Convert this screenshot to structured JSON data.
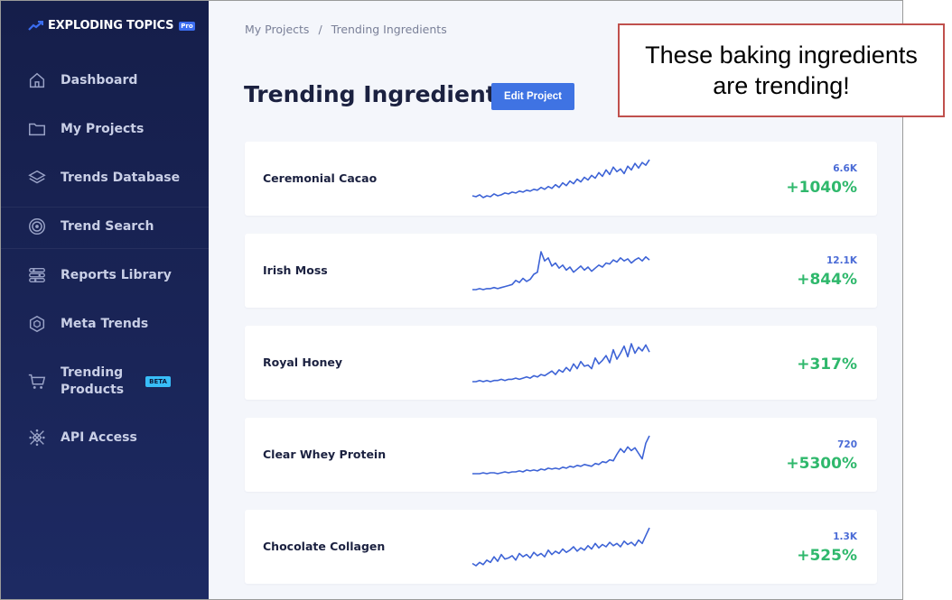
{
  "app": {
    "logo_text": "EXPLODING TOPICS",
    "pro_badge": "Pro"
  },
  "sidebar": {
    "items": [
      {
        "label": "Dashboard",
        "icon": "home-icon"
      },
      {
        "label": "My Projects",
        "icon": "folder-icon"
      },
      {
        "label": "Trends Database",
        "icon": "layers-icon"
      },
      {
        "label": "Trend Search",
        "icon": "target-icon"
      },
      {
        "label": "Reports Library",
        "icon": "sliders-icon"
      },
      {
        "label": "Meta Trends",
        "icon": "hexagon-icon"
      },
      {
        "label_line1": "Trending",
        "label_line2": "Products",
        "badge": "BETA",
        "icon": "cart-icon"
      },
      {
        "label": "API Access",
        "icon": "api-icon"
      }
    ]
  },
  "breadcrumb": {
    "root": "My Projects",
    "sep": "/",
    "current": "Trending Ingredients"
  },
  "page": {
    "title": "Trending Ingredients",
    "edit_button": "Edit Project"
  },
  "trends": [
    {
      "name": "Ceremonial Cacao",
      "volume": "6.6K",
      "growth": "+1040%",
      "series": [
        6,
        5,
        7,
        4,
        6,
        5,
        8,
        6,
        7,
        9,
        8,
        10,
        9,
        11,
        10,
        12,
        11,
        13,
        12,
        15,
        13,
        16,
        14,
        18,
        15,
        20,
        17,
        22,
        19,
        24,
        21,
        26,
        23,
        28,
        25,
        31,
        27,
        34,
        29,
        37,
        32,
        35,
        30,
        38,
        34,
        41,
        36,
        42,
        39,
        45
      ]
    },
    {
      "name": "Irish Moss",
      "volume": "12.1K",
      "growth": "+844%",
      "series": [
        5,
        5,
        6,
        5,
        6,
        6,
        7,
        6,
        7,
        8,
        9,
        10,
        14,
        12,
        16,
        13,
        15,
        20,
        22,
        42,
        33,
        36,
        28,
        31,
        26,
        29,
        24,
        27,
        22,
        25,
        28,
        24,
        27,
        23,
        26,
        29,
        27,
        31,
        30,
        34,
        32,
        36,
        33,
        35,
        31,
        34,
        36,
        33,
        37,
        34
      ]
    },
    {
      "name": "Royal Honey",
      "volume": "",
      "growth": "+317%",
      "series": [
        4,
        4,
        5,
        4,
        5,
        4,
        5,
        5,
        6,
        5,
        6,
        6,
        7,
        6,
        7,
        8,
        7,
        9,
        8,
        10,
        9,
        11,
        13,
        10,
        14,
        12,
        16,
        13,
        19,
        15,
        21,
        17,
        18,
        15,
        24,
        19,
        22,
        26,
        20,
        31,
        23,
        28,
        34,
        25,
        36,
        28,
        33,
        30,
        35,
        29
      ]
    },
    {
      "name": "Clear Whey Protein",
      "volume": "720",
      "growth": "+5300%",
      "series": [
        3,
        3,
        3,
        4,
        3,
        4,
        4,
        3,
        4,
        5,
        4,
        5,
        5,
        6,
        5,
        7,
        6,
        7,
        6,
        8,
        7,
        9,
        8,
        9,
        8,
        10,
        9,
        11,
        10,
        12,
        11,
        13,
        12,
        11,
        14,
        13,
        16,
        15,
        18,
        17,
        24,
        30,
        26,
        32,
        28,
        31,
        25,
        19,
        36,
        44
      ]
    },
    {
      "name": "Chocolate Collagen",
      "volume": "1.3K",
      "growth": "+525%",
      "series": [
        6,
        4,
        7,
        5,
        9,
        7,
        12,
        8,
        14,
        10,
        11,
        13,
        9,
        15,
        12,
        14,
        11,
        16,
        13,
        15,
        12,
        18,
        14,
        17,
        15,
        19,
        16,
        18,
        21,
        17,
        20,
        18,
        22,
        19,
        24,
        20,
        23,
        21,
        25,
        22,
        24,
        21,
        26,
        23,
        25,
        22,
        27,
        24,
        31,
        38
      ]
    }
  ],
  "callout": {
    "text_line1": "These baking ingredients",
    "text_line2": "are trending!"
  },
  "colors": {
    "sidebar_bg": "#151e4a",
    "accent": "#3f73e3",
    "growth": "#2fb86c",
    "volume": "#4a6bd6",
    "spark": "#3d63d6",
    "callout_border": "#c0504d"
  }
}
